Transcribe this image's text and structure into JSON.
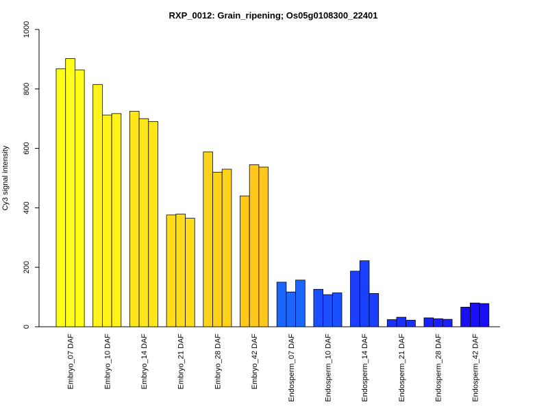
{
  "chart_data": {
    "type": "bar",
    "title": "RXP_0012: Grain_ripening; Os05g0108300_22401",
    "xlabel": "",
    "ylabel": "Cy3 signal intensity",
    "ylim": [
      0,
      1000
    ],
    "yticks": [
      0,
      200,
      400,
      600,
      800,
      1000
    ],
    "grid": false,
    "categories": [
      "Embryo_07 DAF",
      "Embryo_10 DAF",
      "Embryo_14 DAF",
      "Embryo_21 DAF",
      "Embryo_28 DAF",
      "Embryo_42 DAF",
      "Endosperm_07 DAF",
      "Endosperm_10 DAF",
      "Endosperm_14 DAF",
      "Endosperm_21 DAF",
      "Endosperm_28 DAF",
      "Endosperm_42 DAF"
    ],
    "colors": [
      "#FFFF1A",
      "#FFF31A",
      "#FFE61A",
      "#FFDC1A",
      "#FFD21A",
      "#FFC81A",
      "#1A66FF",
      "#1A50FF",
      "#1A40FF",
      "#1A30FF",
      "#1A20FF",
      "#1A10F5"
    ],
    "replicates": [
      [
        868,
        902,
        864
      ],
      [
        815,
        712,
        717
      ],
      [
        725,
        700,
        690
      ],
      [
        376,
        379,
        365
      ],
      [
        588,
        520,
        530
      ],
      [
        440,
        545,
        537
      ],
      [
        150,
        117,
        157
      ],
      [
        126,
        108,
        114
      ],
      [
        187,
        222,
        112
      ],
      [
        24,
        32,
        22
      ],
      [
        30,
        27,
        25
      ],
      [
        66,
        80,
        78
      ]
    ]
  }
}
